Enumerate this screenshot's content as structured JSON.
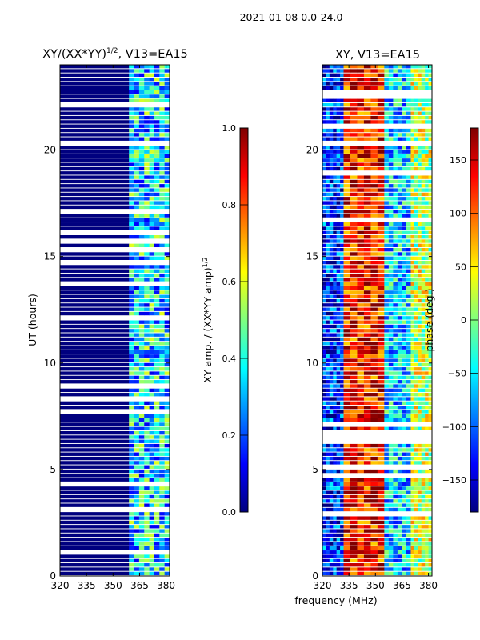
{
  "suptitle": "2021-01-08 0.0-24.0",
  "colors": {
    "colormap": [
      "#00007f",
      "#0000ff",
      "#007fff",
      "#00ffff",
      "#7fff7f",
      "#ffff00",
      "#ff7f00",
      "#ff0000",
      "#7f0000"
    ],
    "background": "#ffffff",
    "axis": "#000000"
  },
  "chart_data": [
    {
      "type": "heatmap",
      "title_main": "XY/(XX*YY)",
      "title_exp": "1/2",
      "title_tail": ", V13=EA15",
      "xlabel": "",
      "ylabel": "UT (hours)",
      "xlim": [
        320,
        382
      ],
      "ylim": [
        0,
        24
      ],
      "xticks": [
        "320",
        "335",
        "350",
        "365",
        "380"
      ],
      "yticks": [
        "0",
        "5",
        "10",
        "15",
        "20"
      ],
      "colorbar": {
        "label_main": "XY amp. / (XX*YY amp)",
        "label_exp": "1/2",
        "range": [
          0.0,
          1.0
        ],
        "ticks": [
          "0.0",
          "0.2",
          "0.4",
          "0.6",
          "0.8",
          "1.0"
        ]
      },
      "bands": [
        {
          "x_range": [
            320,
            359
          ],
          "mean_value": 0.0
        },
        {
          "x_range": [
            359,
            382
          ],
          "mean_value": 0.35
        }
      ]
    },
    {
      "type": "heatmap",
      "title": "XY, V13=EA15",
      "xlabel": "frequency (MHz)",
      "ylabel": "",
      "xlim": [
        320,
        382
      ],
      "ylim": [
        0,
        24
      ],
      "xticks": [
        "320",
        "335",
        "350",
        "365",
        "380"
      ],
      "yticks": [
        "0",
        "5",
        "10",
        "15",
        "20"
      ],
      "colorbar": {
        "label": "phase (deg.)",
        "range": [
          -180,
          180
        ],
        "ticks": [
          "−150",
          "−100",
          "−50",
          "0",
          "50",
          "100",
          "150"
        ]
      },
      "bands": [
        {
          "x_range": [
            320,
            332
          ],
          "mean_value": -120
        },
        {
          "x_range": [
            332,
            355
          ],
          "mean_value": 130
        },
        {
          "x_range": [
            355,
            370
          ],
          "mean_value": -60
        },
        {
          "x_range": [
            370,
            382
          ],
          "mean_value": 20
        }
      ]
    }
  ]
}
